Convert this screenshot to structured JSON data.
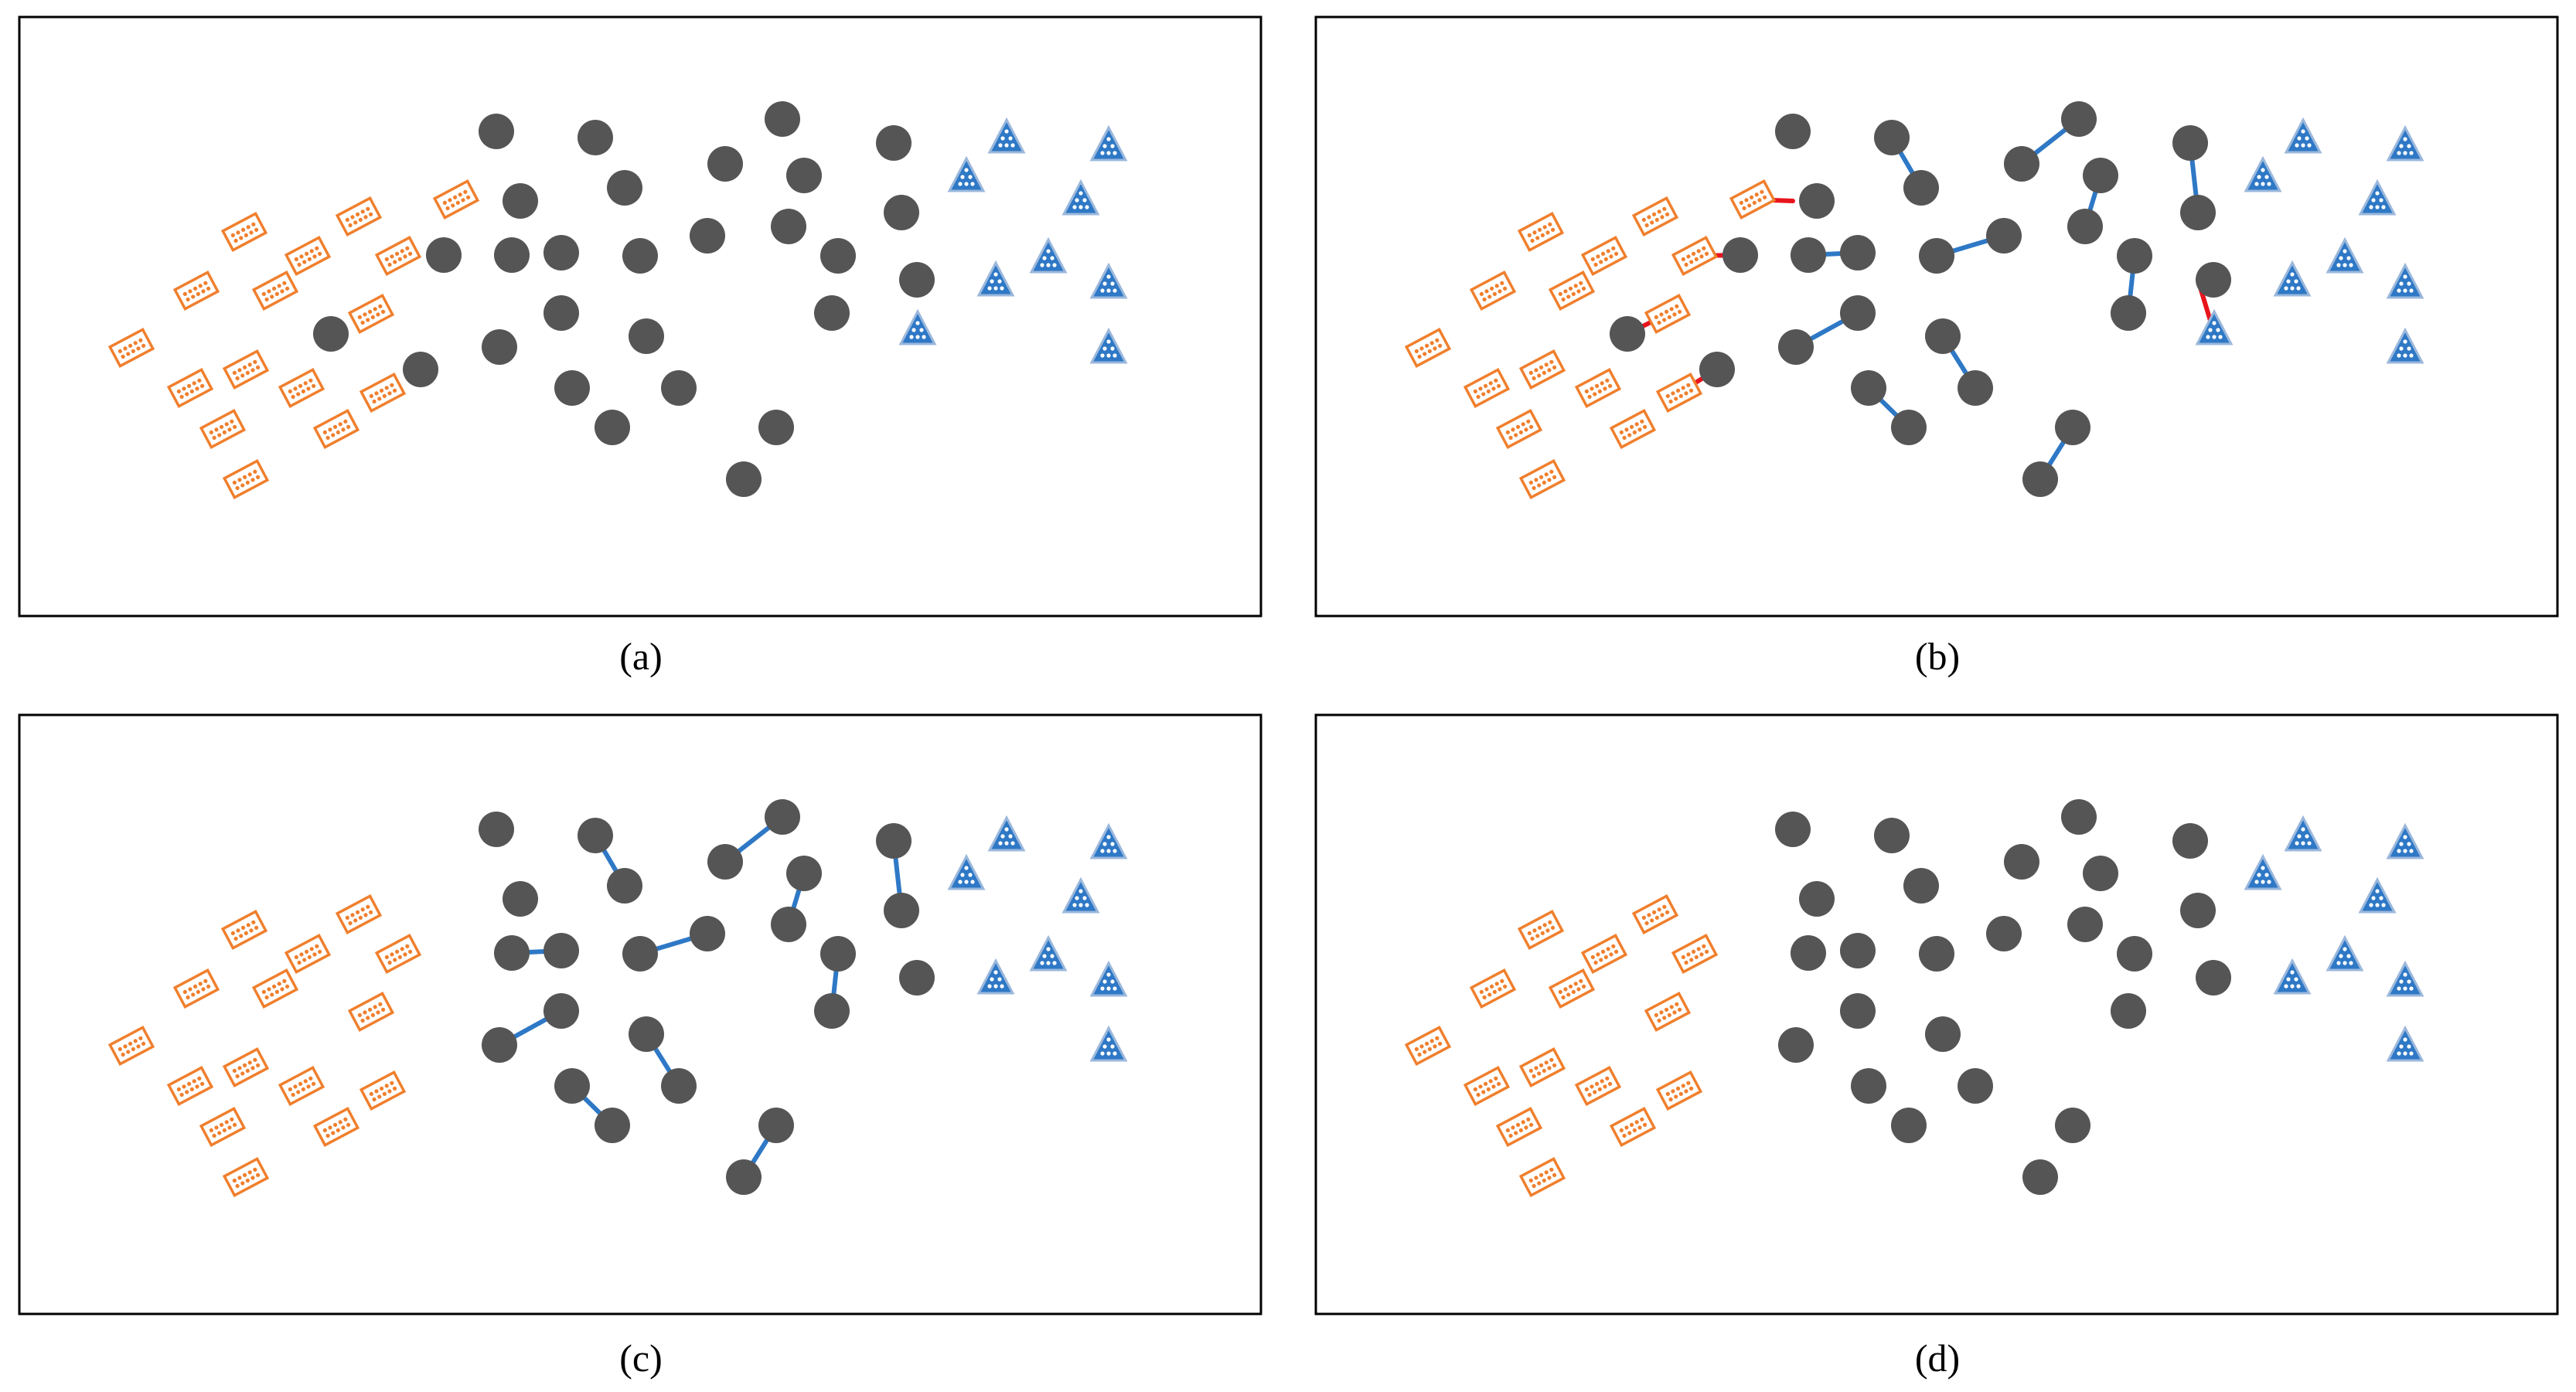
{
  "panels": [
    {
      "id": "a",
      "caption": "(a)",
      "show_noise": true,
      "show_red": false,
      "show_blue": false
    },
    {
      "id": "b",
      "caption": "(b)",
      "show_noise": true,
      "show_red": true,
      "show_blue": true
    },
    {
      "id": "c",
      "caption": "(c)",
      "show_noise": false,
      "show_red": false,
      "show_blue": true
    },
    {
      "id": "d",
      "caption": "(d)",
      "show_noise": false,
      "show_red": false,
      "show_blue": false
    }
  ],
  "colors": {
    "diamond": "#f07f2d",
    "circle": "#555555",
    "triangle": "#2e78c6",
    "edge_intra": "#2e78c6",
    "edge_inter": "#e8141c"
  }
}
